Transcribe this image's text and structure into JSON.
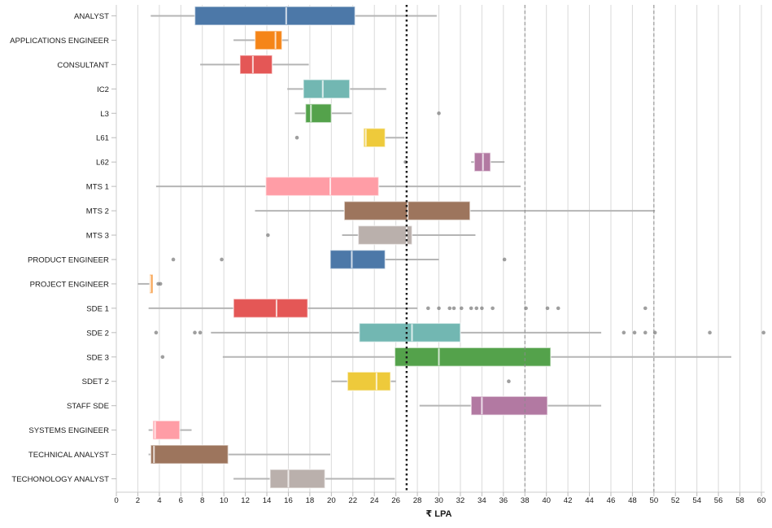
{
  "chart_data": {
    "type": "boxplot",
    "orientation": "horizontal",
    "title": "",
    "xlabel": "₹ LPA",
    "ylabel": "",
    "xlim": [
      0,
      60
    ],
    "x_ticks": [
      0,
      2,
      4,
      6,
      8,
      10,
      12,
      14,
      16,
      18,
      20,
      22,
      24,
      26,
      28,
      30,
      32,
      34,
      36,
      38,
      40,
      42,
      44,
      46,
      48,
      50,
      52,
      54,
      56,
      58,
      60
    ],
    "grid": "vertical-every-2",
    "legend": "none",
    "reference_lines": [
      {
        "value": 27,
        "style": "dotted",
        "color": "#1a1a1a",
        "width": 2.4
      },
      {
        "value": 38,
        "style": "dashed",
        "color": "#8a8a8a",
        "width": 1
      },
      {
        "value": 50,
        "style": "dashed",
        "color": "#8a8a8a",
        "width": 1
      }
    ],
    "colors": {
      "grid": "#d9d9d9",
      "axis_domain": "#cccccc",
      "tick": "#bbbbbb",
      "whisker": "#b5b5b5",
      "median": "rgba(255,255,255,0.75)",
      "box_stroke": "rgba(255,255,255,0.55)",
      "outlier": "#7f7f7f"
    },
    "palette": [
      "#4c78a8",
      "#f58518",
      "#e45756",
      "#72b7b2",
      "#54a24b",
      "#eeca3b",
      "#b279a2",
      "#ff9da6",
      "#9d755d",
      "#bab0ac"
    ],
    "rows": [
      {
        "label": "ANALYST",
        "color": "#4c78a8",
        "low": 3.2,
        "q1": 7.3,
        "median": 15.8,
        "q3": 22.2,
        "high": 29.8,
        "outliers": []
      },
      {
        "label": "APPLICATIONS ENGINEER",
        "color": "#f58518",
        "low": 10.9,
        "q1": 12.9,
        "median": 14.8,
        "q3": 15.4,
        "high": 16.0,
        "outliers": []
      },
      {
        "label": "CONSULTANT",
        "color": "#e45756",
        "low": 7.8,
        "q1": 11.5,
        "median": 12.7,
        "q3": 14.5,
        "high": 17.9,
        "outliers": []
      },
      {
        "label": "IC2",
        "color": "#72b7b2",
        "low": 15.9,
        "q1": 17.4,
        "median": 19.2,
        "q3": 21.7,
        "high": 25.1,
        "outliers": []
      },
      {
        "label": "L3",
        "color": "#54a24b",
        "low": 16.6,
        "q1": 17.6,
        "median": 18.1,
        "q3": 20.0,
        "high": 21.9,
        "outliers": [
          30.0
        ]
      },
      {
        "label": "L61",
        "color": "#eeca3b",
        "low": 23.0,
        "q1": 23.0,
        "median": 23.2,
        "q3": 25.0,
        "high": 26.8,
        "outliers": [
          16.8
        ]
      },
      {
        "label": "L62",
        "color": "#b279a2",
        "low": 33.0,
        "q1": 33.3,
        "median": 34.1,
        "q3": 34.8,
        "high": 36.1,
        "outliers": [
          26.9
        ]
      },
      {
        "label": "MTS 1",
        "color": "#ff9da6",
        "low": 3.7,
        "q1": 13.9,
        "median": 19.9,
        "q3": 24.4,
        "high": 37.6,
        "outliers": []
      },
      {
        "label": "MTS 2",
        "color": "#9d755d",
        "low": 12.9,
        "q1": 21.2,
        "median": 27.1,
        "q3": 32.9,
        "high": 50.1,
        "outliers": []
      },
      {
        "label": "MTS 3",
        "color": "#bab0ac",
        "low": 21.0,
        "q1": 22.5,
        "median": 27.0,
        "q3": 27.5,
        "high": 33.4,
        "outliers": [
          14.1
        ]
      },
      {
        "label": "PRODUCT ENGINEER",
        "color": "#4c78a8",
        "low": 19.9,
        "q1": 19.9,
        "median": 21.9,
        "q3": 25.0,
        "high": 30.0,
        "outliers": [
          5.3,
          9.8,
          36.1
        ]
      },
      {
        "label": "PROJECT ENGINEER",
        "color": "#f58518",
        "low": 2.0,
        "q1": 3.1,
        "median": 3.2,
        "q3": 3.4,
        "high": 3.4,
        "outliers": [
          3.9,
          4.1
        ]
      },
      {
        "label": "SDE 1",
        "color": "#e45756",
        "low": 3.0,
        "q1": 10.9,
        "median": 14.9,
        "q3": 17.8,
        "high": 28.0,
        "outliers": [
          29.0,
          30.0,
          31.0,
          31.4,
          32.1,
          33.0,
          33.5,
          34.0,
          35.0,
          38.1,
          40.1,
          41.1,
          49.2
        ]
      },
      {
        "label": "SDE 2",
        "color": "#72b7b2",
        "low": 8.8,
        "q1": 22.6,
        "median": 27.5,
        "q3": 32.0,
        "high": 45.1,
        "outliers": [
          3.7,
          7.3,
          7.8,
          47.2,
          48.2,
          49.2,
          50.1,
          55.2,
          60.2
        ]
      },
      {
        "label": "SDE 3",
        "color": "#54a24b",
        "low": 9.9,
        "q1": 25.9,
        "median": 30.0,
        "q3": 40.4,
        "high": 57.2,
        "outliers": [
          4.3
        ]
      },
      {
        "label": "SDET 2",
        "color": "#eeca3b",
        "low": 20.0,
        "q1": 21.5,
        "median": 24.2,
        "q3": 25.5,
        "high": 26.0,
        "outliers": [
          36.5
        ]
      },
      {
        "label": "STAFF SDE",
        "color": "#b279a2",
        "low": 28.2,
        "q1": 33.0,
        "median": 34.0,
        "q3": 40.1,
        "high": 45.1,
        "outliers": []
      },
      {
        "label": "SYSTEMS ENGINEER",
        "color": "#ff9da6",
        "low": 3.0,
        "q1": 3.4,
        "median": 3.6,
        "q3": 5.9,
        "high": 7.0,
        "outliers": []
      },
      {
        "label": "TECHNICAL ANALYST",
        "color": "#9d755d",
        "low": 3.0,
        "q1": 3.2,
        "median": 3.5,
        "q3": 10.4,
        "high": 19.9,
        "outliers": []
      },
      {
        "label": "TECHONOLOGY ANALYST",
        "color": "#bab0ac",
        "low": 10.9,
        "q1": 14.3,
        "median": 16.0,
        "q3": 19.4,
        "high": 25.9,
        "outliers": []
      }
    ]
  }
}
